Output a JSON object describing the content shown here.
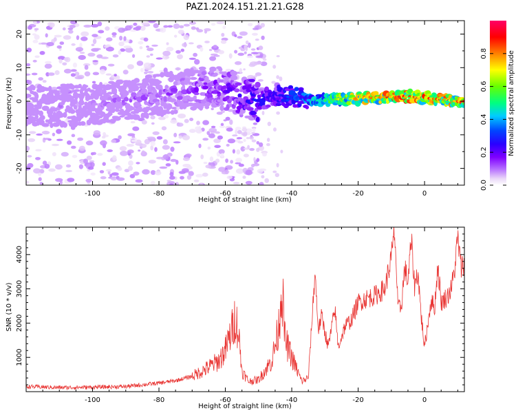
{
  "title": "PAZ1.2024.151.21.21.G28",
  "chart_data": [
    {
      "type": "heatmap",
      "xlabel": "Height of straight line (km)",
      "ylabel": "Frequency (Hz)",
      "xlim": [
        -120,
        12
      ],
      "ylim": [
        -25,
        24
      ],
      "xticks": [
        -100,
        -80,
        -60,
        -40,
        -20,
        0
      ],
      "yticks": [
        -20,
        -10,
        0,
        10,
        20
      ],
      "colorbar": {
        "label": "Normalized spectral amplitude",
        "range": [
          0,
          1
        ],
        "ticks": [
          0.0,
          0.2,
          0.4,
          0.6,
          0.8
        ],
        "colormap": [
          "#ffffff",
          "#ead7f8",
          "#b46cff",
          "#7f00ff",
          "#2a00ff",
          "#0044ff",
          "#00ccff",
          "#00ff80",
          "#66ff00",
          "#ffff00",
          "#ff8000",
          "#ff0000",
          "#ff0066"
        ]
      },
      "ridge": [
        {
          "x": -120,
          "f": -1.5,
          "amp": 0.08
        },
        {
          "x": -100,
          "f": -1.0,
          "amp": 0.1
        },
        {
          "x": -80,
          "f": 2.0,
          "amp": 0.14
        },
        {
          "x": -63,
          "f": 4.5,
          "amp": 0.18
        },
        {
          "x": -50,
          "f": 0.0,
          "amp": 0.3
        },
        {
          "x": -45,
          "f": 2.0,
          "amp": 0.25
        },
        {
          "x": -35,
          "f": 0.3,
          "amp": 0.4
        },
        {
          "x": -20,
          "f": 0.8,
          "amp": 0.75
        },
        {
          "x": -5,
          "f": 1.5,
          "amp": 0.85
        },
        {
          "x": 10,
          "f": 0.0,
          "amp": 0.8
        }
      ]
    },
    {
      "type": "line",
      "xlabel": "Height of straight line (km)",
      "ylabel": "SNR (10 * v/v)",
      "xlim": [
        -120,
        12
      ],
      "ylim": [
        0,
        4800
      ],
      "xticks": [
        -100,
        -80,
        -60,
        -40,
        -20,
        0
      ],
      "yticks": [
        1000,
        2000,
        3000,
        4000
      ],
      "color": "#e8312f",
      "series": [
        {
          "x": [
            -120,
            -110,
            -100,
            -90,
            -80,
            -75,
            -70,
            -66,
            -62,
            -60,
            -58,
            -57,
            -56,
            -55,
            -53,
            -50,
            -46,
            -44,
            -43,
            -42,
            -40,
            -37,
            -35,
            -33,
            -32,
            -31,
            -29,
            -27,
            -26,
            -24,
            -22,
            -20,
            -18,
            -15,
            -12,
            -10,
            -9,
            -8,
            -7,
            -6,
            -5,
            -4,
            -3,
            -2,
            -1,
            0,
            2,
            3,
            4,
            5,
            7,
            8,
            9,
            10,
            11,
            12
          ],
          "y": [
            150,
            120,
            130,
            150,
            250,
            320,
            450,
            650,
            900,
            1200,
            1800,
            2200,
            1700,
            600,
            300,
            350,
            900,
            1800,
            3100,
            1500,
            1000,
            300,
            400,
            3500,
            1800,
            2200,
            1300,
            2400,
            1300,
            1900,
            2100,
            2600,
            2700,
            2800,
            3000,
            3900,
            4700,
            2400,
            2500,
            3600,
            3200,
            4400,
            3100,
            3500,
            2200,
            1300,
            2700,
            2400,
            3700,
            2600,
            2800,
            3000,
            3500,
            4500,
            3600,
            3800
          ]
        }
      ]
    }
  ]
}
